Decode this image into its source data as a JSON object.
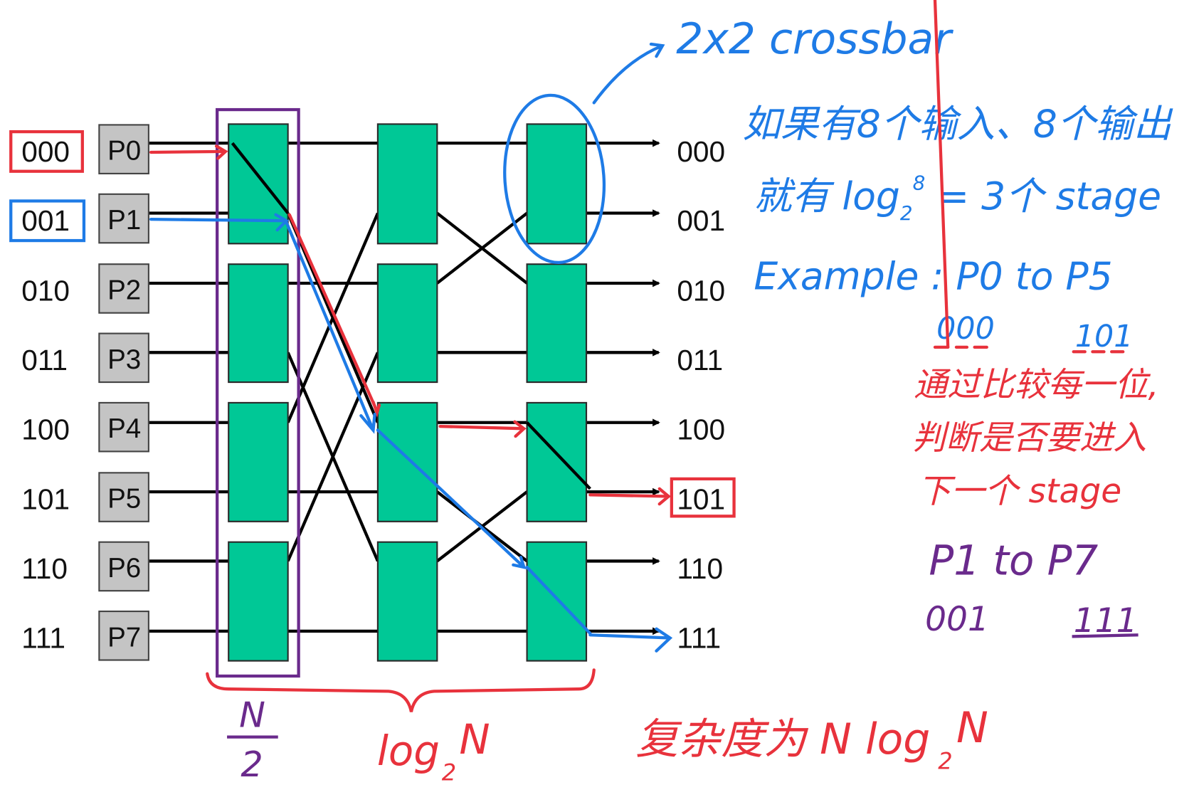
{
  "colors": {
    "switch": "#00c896",
    "processor": "#c4c4c4",
    "annotation_blue": "#1e7be6",
    "annotation_red": "#e8323c",
    "annotation_purple": "#6a2a8c"
  },
  "inputs": [
    {
      "addr": "000",
      "proc": "P0"
    },
    {
      "addr": "001",
      "proc": "P1"
    },
    {
      "addr": "010",
      "proc": "P2"
    },
    {
      "addr": "011",
      "proc": "P3"
    },
    {
      "addr": "100",
      "proc": "P4"
    },
    {
      "addr": "101",
      "proc": "P5"
    },
    {
      "addr": "110",
      "proc": "P6"
    },
    {
      "addr": "111",
      "proc": "P7"
    }
  ],
  "outputs": [
    "000",
    "001",
    "010",
    "011",
    "100",
    "101",
    "110",
    "111"
  ],
  "annotations": {
    "crossbar": "2x2 crossbar",
    "line1": "如果有8个输入、8个输出",
    "line2_prefix": "就有 log",
    "line2_sub": "2",
    "line2_sup": "8",
    "line2_suffix": " = 3个 stage",
    "example": "Example :  P0  to  P5",
    "ex_src": "000",
    "ex_dst": "101",
    "rule1": "通过比较每一位,",
    "rule2": "判断是否要进入",
    "rule3": "下一个 stage",
    "example2": "P1  to  P7",
    "ex2_src": "001",
    "ex2_dst": "111",
    "n_over_2_num": "N",
    "n_over_2_den": "2",
    "log2n": "log",
    "log2n_sub": "2",
    "log2n_n": "N",
    "complexity_prefix": "复杂度为 N log",
    "complexity_sub": "2",
    "complexity_n": "N"
  }
}
